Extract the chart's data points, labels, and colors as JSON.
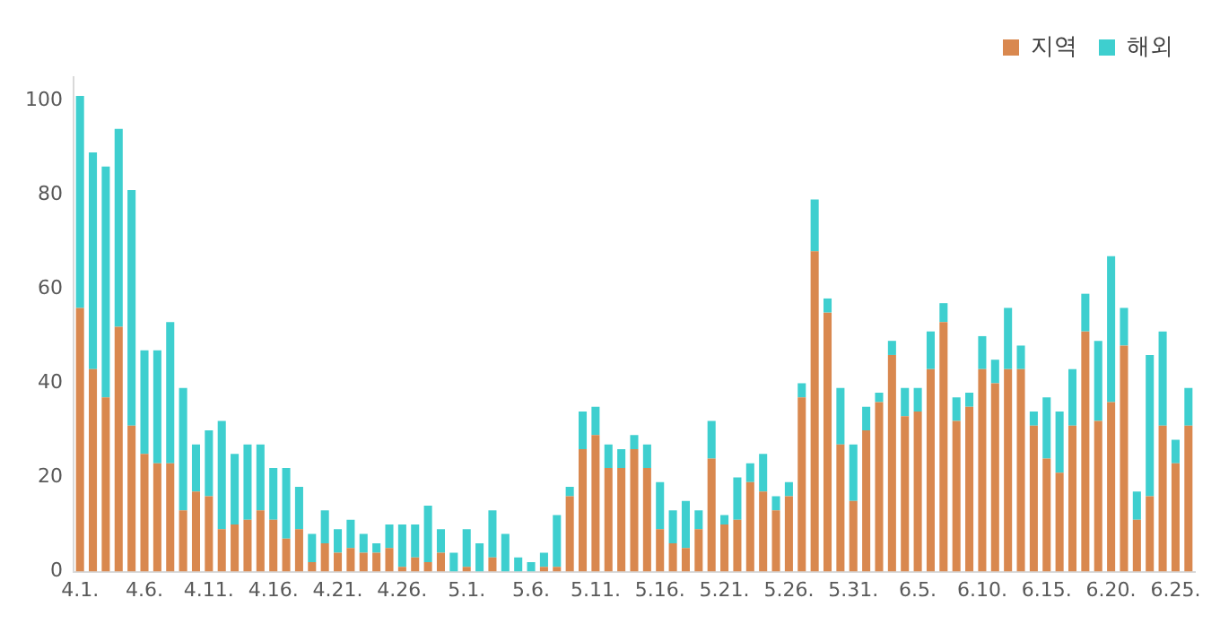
{
  "chart_data": {
    "type": "bar",
    "stacked": true,
    "categories": [
      "4.1.",
      null,
      null,
      null,
      null,
      "4.6.",
      null,
      null,
      null,
      null,
      "4.11.",
      null,
      null,
      null,
      null,
      "4.16.",
      null,
      null,
      null,
      null,
      "4.21.",
      null,
      null,
      null,
      null,
      "4.26.",
      null,
      null,
      null,
      null,
      "5.1.",
      null,
      null,
      null,
      null,
      "5.6.",
      null,
      null,
      null,
      null,
      "5.11.",
      null,
      null,
      null,
      null,
      "5.16.",
      null,
      null,
      null,
      null,
      "5.21.",
      null,
      null,
      null,
      null,
      "5.26.",
      null,
      null,
      null,
      null,
      "5.31.",
      null,
      null,
      null,
      null,
      "6.5.",
      null,
      null,
      null,
      null,
      "6.10.",
      null,
      null,
      null,
      null,
      "6.15.",
      null,
      null,
      null,
      null,
      "6.20.",
      null,
      null,
      null,
      null,
      "6.25.",
      null
    ],
    "series": [
      {
        "name": "지역",
        "color": "#d9884f",
        "values": [
          56,
          43,
          37,
          52,
          31,
          25,
          23,
          23,
          13,
          17,
          16,
          9,
          10,
          11,
          13,
          11,
          7,
          9,
          2,
          6,
          4,
          5,
          4,
          4,
          5,
          1,
          3,
          2,
          4,
          0,
          1,
          0,
          3,
          0,
          0,
          0,
          1,
          1,
          16,
          26,
          29,
          22,
          22,
          26,
          22,
          9,
          6,
          5,
          9,
          24,
          10,
          11,
          19,
          17,
          13,
          16,
          37,
          68,
          55,
          27,
          15,
          30,
          36,
          46,
          33,
          34,
          43,
          53,
          32,
          35,
          43,
          40,
          43,
          43,
          31,
          24,
          21,
          31,
          51,
          32,
          36,
          48,
          11,
          16,
          31,
          23,
          31
        ]
      },
      {
        "name": "해외",
        "color": "#3ecfcf",
        "values": [
          45,
          46,
          49,
          42,
          50,
          22,
          24,
          30,
          26,
          10,
          14,
          23,
          15,
          16,
          14,
          11,
          15,
          9,
          6,
          7,
          5,
          6,
          4,
          2,
          5,
          9,
          7,
          12,
          5,
          4,
          8,
          6,
          10,
          8,
          3,
          2,
          3,
          11,
          2,
          8,
          6,
          5,
          4,
          3,
          5,
          10,
          7,
          10,
          4,
          8,
          2,
          9,
          4,
          8,
          3,
          3,
          3,
          11,
          3,
          12,
          12,
          5,
          2,
          3,
          6,
          5,
          8,
          4,
          5,
          3,
          7,
          5,
          13,
          5,
          3,
          13,
          13,
          12,
          8,
          17,
          31,
          8,
          6,
          30,
          20,
          5,
          8
        ]
      }
    ],
    "ylim": [
      0,
      105
    ],
    "yticks": [
      0,
      20,
      40,
      60,
      80,
      100
    ],
    "grid": false,
    "legend": "top right"
  }
}
